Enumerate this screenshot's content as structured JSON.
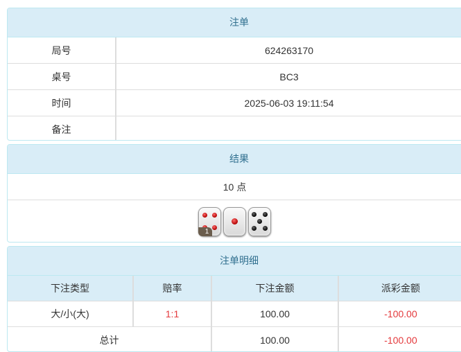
{
  "order": {
    "title": "注单",
    "rows": [
      {
        "label": "局号",
        "value": "624263170"
      },
      {
        "label": "桌号",
        "value": "BC3"
      },
      {
        "label": "时间",
        "value": "2025-06-03 19:11:54"
      },
      {
        "label": "备注",
        "value": ""
      }
    ]
  },
  "result": {
    "title": "结果",
    "points": "10 点",
    "dice": [
      4,
      1,
      5
    ],
    "dice_badge": "1"
  },
  "details": {
    "title": "注单明细",
    "columns": [
      "下注类型",
      "赔率",
      "下注金额",
      "派彩金额"
    ],
    "rows": [
      {
        "type": "大/小(大)",
        "odds": "1:1",
        "bet": "100.00",
        "payout": "-100.00"
      }
    ],
    "total": {
      "label": "总计",
      "bet": "100.00",
      "payout": "-100.00"
    }
  },
  "colors": {
    "header_bg": "#d9edf7",
    "header_text": "#31708f",
    "border": "#bce8f1",
    "negative": "#e4393c",
    "pip_red": "#c00000",
    "pip_black": "#000000"
  }
}
